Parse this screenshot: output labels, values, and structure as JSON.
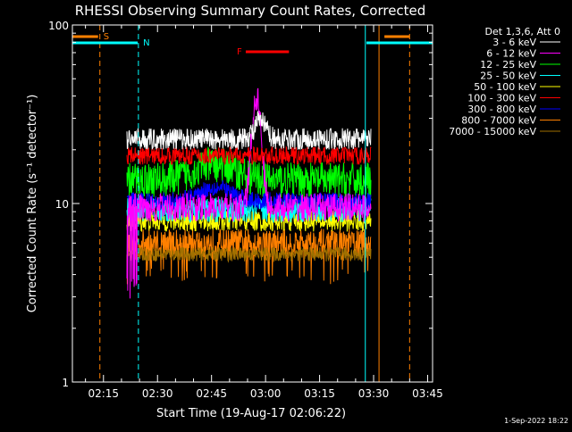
{
  "chart_data": {
    "type": "line",
    "title": "RHESSI Observing Summary Count Rates, Corrected",
    "xlabel": "Start Time (19-Aug-17 02:06:22)",
    "ylabel": "Corrected Count Rate (s⁻¹ detector⁻¹)",
    "yscale": "log",
    "ylim": [
      1,
      100
    ],
    "xlim_minutes_after_0200": [
      6.37,
      106.37
    ],
    "x_ticks": [
      {
        "label": "02:15",
        "minutes": 15
      },
      {
        "label": "02:30",
        "minutes": 30
      },
      {
        "label": "02:45",
        "minutes": 45
      },
      {
        "label": "03:00",
        "minutes": 60
      },
      {
        "label": "03:15",
        "minutes": 75
      },
      {
        "label": "03:30",
        "minutes": 90
      },
      {
        "label": "03:45",
        "minutes": 105
      }
    ],
    "y_ticks": [
      {
        "label": "1",
        "value": 1
      },
      {
        "label": "10",
        "value": 10
      },
      {
        "label": "100",
        "value": 100
      }
    ],
    "data_interval_minutes": [
      21.5,
      89.3
    ],
    "legend_header": "Det 1,3,6, Att 0",
    "legend_placement": "right",
    "series": [
      {
        "name": "3 - 6 keV",
        "color": "#ffffff",
        "base": 23,
        "noise": 0.06,
        "peak": 6,
        "peak_t": 58.5,
        "peak_w": 2.2
      },
      {
        "name": "6 - 12 keV",
        "color": "#ff00ff",
        "base": 9.5,
        "noise": 0.08,
        "peak": 30,
        "peak_t": 57.5,
        "peak_w": 1.6,
        "low_start": 3.2
      },
      {
        "name": "12 - 25 keV",
        "color": "#00ff00",
        "base": 13.5,
        "noise": 0.1,
        "hump": 3,
        "hump_t": 46,
        "hump_w": 8
      },
      {
        "name": "25 - 50 keV",
        "color": "#00ffff",
        "base": 9.2,
        "noise": 0.07
      },
      {
        "name": "50 - 100 keV",
        "color": "#ffff00",
        "base": 8.0,
        "noise": 0.06
      },
      {
        "name": "100 - 300 keV",
        "color": "#ff0000",
        "base": 18.5,
        "noise": 0.05
      },
      {
        "name": "300 - 800 keV",
        "color": "#0000ff",
        "base": 10.3,
        "noise": 0.05,
        "hump": 2.0,
        "hump_t": 46,
        "hump_w": 6
      },
      {
        "name": "800 - 7000 keV",
        "color": "#ff8000",
        "base": 6.0,
        "noise": 0.08,
        "dips_to": 4.4
      },
      {
        "name": "7000 - 15000 keV",
        "color": "#a07000",
        "base": 5.2,
        "noise": 0.04
      }
    ],
    "annotations": [
      {
        "label": "S",
        "color": "#ff8000",
        "type": "SAA",
        "bars_minutes": [
          [
            6.37,
            13.5
          ],
          [
            93.0,
            100.0
          ]
        ],
        "dashed_minutes": [
          14.0,
          100.0
        ],
        "solid_minutes": [
          91.5
        ]
      },
      {
        "label": "N",
        "color": "#00ffff",
        "type": "Night",
        "bars_minutes": [
          [
            6.37,
            24.5
          ],
          [
            88.0,
            106.37
          ]
        ],
        "dashed_minutes": [
          24.7
        ],
        "solid_minutes": [
          87.7
        ]
      },
      {
        "label": "F",
        "color": "#ff0000",
        "type": "Flare",
        "bars_minutes": [
          [
            54.5,
            66.5
          ]
        ]
      }
    ],
    "grid": false
  },
  "footer": {
    "timestamp": "1-Sep-2022 18:22"
  }
}
